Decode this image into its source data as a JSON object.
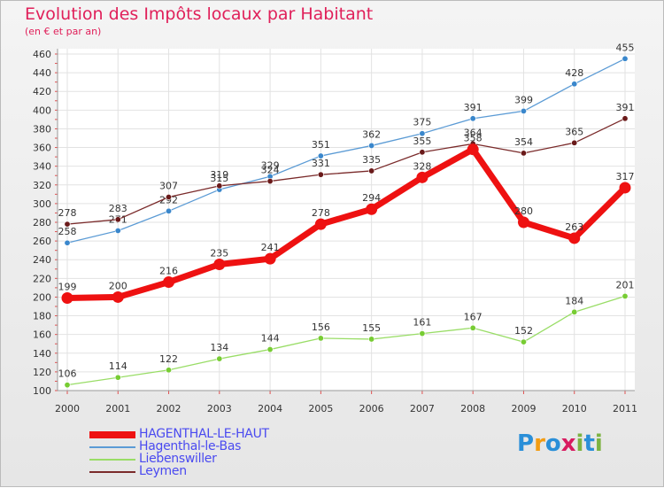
{
  "header": {
    "title": "Evolution des Impôts locaux par Habitant",
    "subtitle": "(en € et par an)"
  },
  "logo": {
    "text": "Proxiti",
    "letters": [
      "P",
      "r",
      "o",
      "x",
      "i",
      "t",
      "i"
    ],
    "colors": [
      "#2a8fd8",
      "#f39c12",
      "#2a8fd8",
      "#d81b60",
      "#7cb342",
      "#2a8fd8",
      "#7cb342"
    ]
  },
  "chart_data": {
    "type": "line",
    "title": "Evolution des Impôts locaux par Habitant",
    "subtitle": "(en € et par an)",
    "xlabel": "",
    "ylabel": "",
    "categories": [
      "2000",
      "2001",
      "2002",
      "2003",
      "2004",
      "2005",
      "2006",
      "2007",
      "2008",
      "2009",
      "2010",
      "2011"
    ],
    "ylim": [
      100,
      460
    ],
    "yticks": [
      100,
      120,
      140,
      160,
      180,
      200,
      220,
      240,
      260,
      280,
      300,
      320,
      340,
      360,
      380,
      400,
      420,
      440,
      460
    ],
    "grid": true,
    "legend_position": "bottom-left",
    "series": [
      {
        "name": "HAGENTHAL-LE-HAUT",
        "color": "#ee1111",
        "emphasis": true,
        "values": [
          199,
          200,
          216,
          235,
          241,
          278,
          294,
          328,
          358,
          280,
          263,
          317
        ]
      },
      {
        "name": "Hagenthal-le-Bas",
        "color": "#5b9bd5",
        "emphasis": false,
        "values": [
          258,
          271,
          292,
          315,
          329,
          351,
          362,
          375,
          391,
          399,
          428,
          455
        ]
      },
      {
        "name": "Liebenswiller",
        "color": "#99dd66",
        "emphasis": false,
        "values": [
          106,
          114,
          122,
          134,
          144,
          156,
          155,
          161,
          167,
          152,
          184,
          201
        ]
      },
      {
        "name": "Leymen",
        "color": "#7a2a2a",
        "emphasis": false,
        "values": [
          278,
          283,
          307,
          319,
          324,
          331,
          335,
          355,
          364,
          354,
          365,
          391
        ]
      }
    ]
  }
}
